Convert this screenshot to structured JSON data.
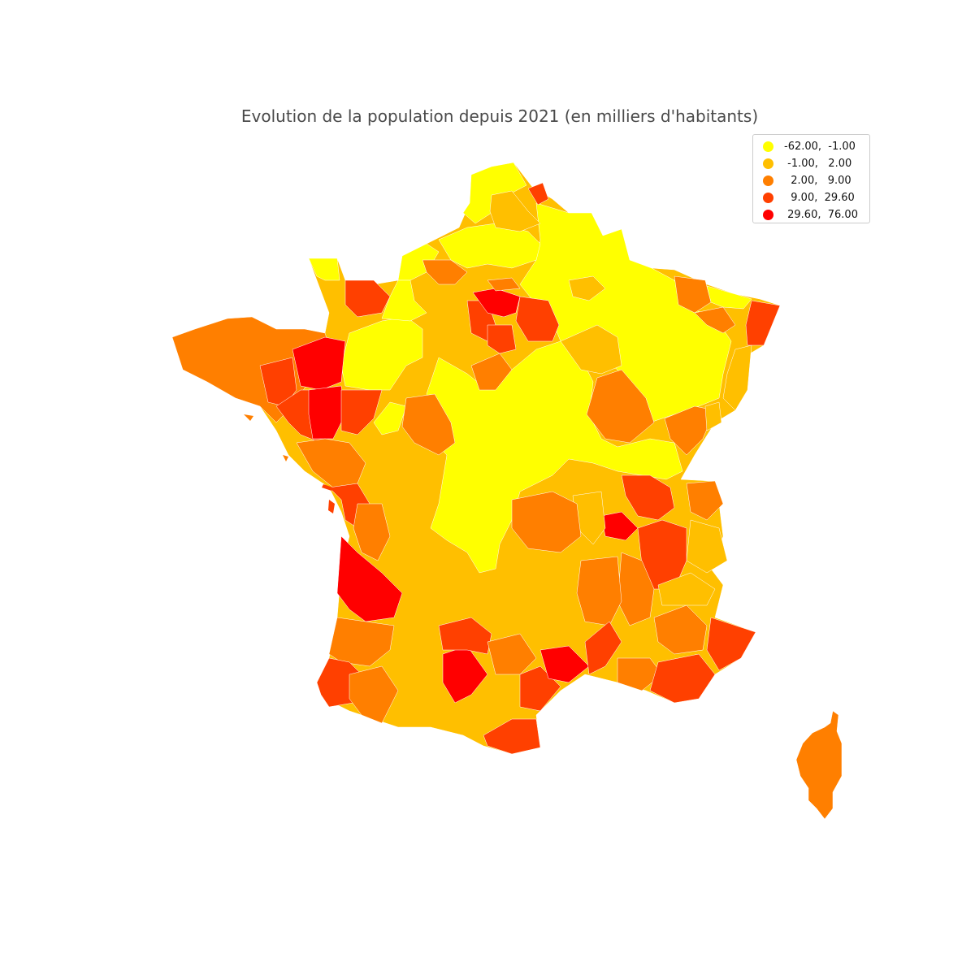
{
  "title": "Evolution de la population depuis 2021 (en milliers d'habitants)",
  "legend": {
    "items": [
      {
        "label": "-62.00,  -1.00",
        "color": "#ffff00"
      },
      {
        "label": " -1.00,   2.00",
        "color": "#ffbf00"
      },
      {
        "label": "  2.00,   9.00",
        "color": "#ff7f00"
      },
      {
        "label": "  9.00,  29.60",
        "color": "#ff4000"
      },
      {
        "label": " 29.60,  76.00",
        "color": "#ff0000"
      }
    ]
  }
}
